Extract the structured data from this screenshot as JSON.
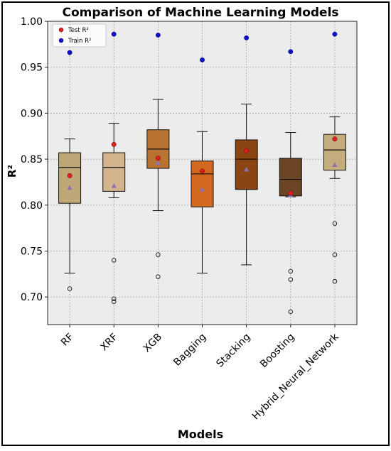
{
  "chart_data": {
    "type": "box",
    "title": "Comparison of Machine Learning Models",
    "xlabel": "Models",
    "ylabel": "R²",
    "ylim": [
      0.67,
      1.0
    ],
    "yticks": [
      "0.70",
      "0.75",
      "0.80",
      "0.85",
      "0.90",
      "0.95",
      "1.00"
    ],
    "grid": true,
    "legend_position": "top-left",
    "legend": [
      {
        "label": "Test R²",
        "color": "#e02020"
      },
      {
        "label": "Train R²",
        "color": "#1010c8"
      }
    ],
    "categories": [
      "RF",
      "XRF",
      "XGB",
      "Bagging",
      "Stacking",
      "Boosting",
      "Hybrid_Neural_Network"
    ],
    "boxes": [
      {
        "name": "RF",
        "color": "#bfa877",
        "whislo": 0.726,
        "q1": 0.802,
        "med": 0.841,
        "q3": 0.857,
        "whishi": 0.872,
        "mean": 0.819,
        "fliers": [
          0.709
        ],
        "test": 0.832,
        "train": 0.966
      },
      {
        "name": "XRF",
        "color": "#d4b48c",
        "whislo": 0.808,
        "q1": 0.815,
        "med": 0.841,
        "q3": 0.857,
        "whishi": 0.889,
        "mean": 0.821,
        "fliers": [
          0.74,
          0.698,
          0.695
        ],
        "test": 0.866,
        "train": 0.986
      },
      {
        "name": "XGB",
        "color": "#b87333",
        "whislo": 0.794,
        "q1": 0.84,
        "med": 0.861,
        "q3": 0.882,
        "whishi": 0.915,
        "mean": 0.846,
        "fliers": [
          0.746,
          0.722
        ],
        "test": 0.851,
        "train": 0.985
      },
      {
        "name": "Bagging",
        "color": "#d2691e",
        "whislo": 0.726,
        "q1": 0.798,
        "med": 0.834,
        "q3": 0.848,
        "whishi": 0.88,
        "mean": 0.817,
        "fliers": [],
        "test": 0.837,
        "train": 0.958
      },
      {
        "name": "Stacking",
        "color": "#8b4513",
        "whislo": 0.735,
        "q1": 0.817,
        "med": 0.85,
        "q3": 0.871,
        "whishi": 0.91,
        "mean": 0.839,
        "fliers": [],
        "test": 0.859,
        "train": 0.982
      },
      {
        "name": "Boosting",
        "color": "#6b4423",
        "whislo": 0.809,
        "q1": 0.81,
        "med": 0.828,
        "q3": 0.851,
        "whishi": 0.879,
        "mean": 0.811,
        "fliers": [
          0.728,
          0.719,
          0.684
        ],
        "test": 0.813,
        "train": 0.967
      },
      {
        "name": "Hybrid_Neural_Network",
        "color": "#c4ad7c",
        "whislo": 0.829,
        "q1": 0.838,
        "med": 0.86,
        "q3": 0.877,
        "whishi": 0.896,
        "mean": 0.844,
        "fliers": [
          0.78,
          0.746,
          0.717
        ],
        "test": 0.872,
        "train": 0.986
      }
    ]
  }
}
